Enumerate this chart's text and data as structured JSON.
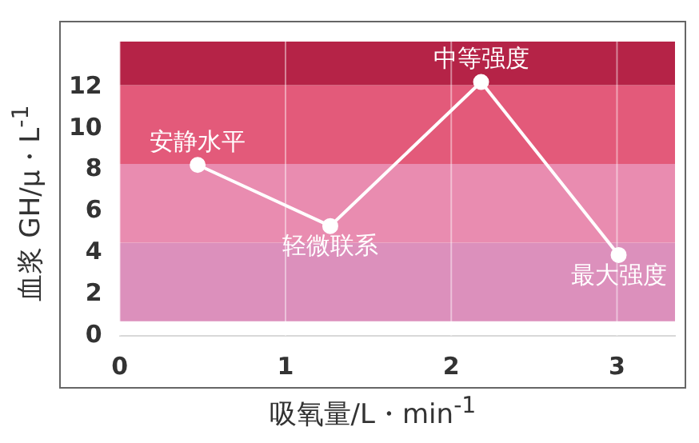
{
  "chart_data": {
    "type": "line",
    "xlabel": "吸氧量/L・min$^{-1}$",
    "ylabel": "血浆 GH/μ・L$^{-1}$",
    "x": [
      0.47,
      1.27,
      2.18,
      3.01
    ],
    "series": [
      {
        "color": "#ffffff",
        "values": [
          8.25,
          5.3,
          12.25,
          3.9
        ]
      }
    ],
    "xlim": [
      0,
      3.35
    ],
    "xticks": [
      0,
      1,
      2,
      3
    ],
    "ylim": [
      0,
      14.2
    ],
    "yticks": [
      0,
      2,
      4,
      6,
      8,
      10,
      12
    ],
    "grid": "x",
    "marker": "circle",
    "line_style": "solid",
    "legend": false,
    "bands": [
      {
        "axis": "y",
        "from": 0.7,
        "to": 4.5,
        "color": "#dc90bc"
      },
      {
        "axis": "y",
        "from": 4.5,
        "to": 8.3,
        "color": "#e98cb0"
      },
      {
        "axis": "y",
        "from": 8.3,
        "to": 12.1,
        "color": "#e35a7a"
      },
      {
        "axis": "y",
        "from": 12.1,
        "to": 14.2,
        "color": "#b52347"
      }
    ],
    "annotations": [
      {
        "text": "安静水平",
        "x": 0.47,
        "y": 8.25
      },
      {
        "text": "轻微联系",
        "x": 1.27,
        "y": 5.3
      },
      {
        "text": "中等强度",
        "x": 2.18,
        "y": 12.25
      },
      {
        "text": "最大强度",
        "x": 3.01,
        "y": 3.9
      }
    ]
  }
}
